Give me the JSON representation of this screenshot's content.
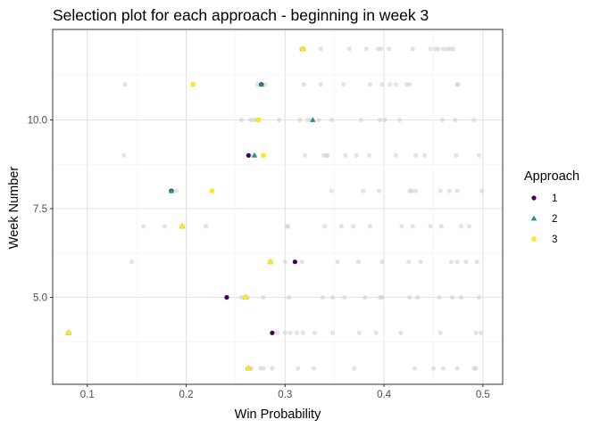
{
  "chart_data": {
    "type": "scatter",
    "title": "Selection plot for each approach - beginning in week 3",
    "xlabel": "Win Probability",
    "ylabel": "Week Number",
    "xlim": [
      0.065,
      0.52
    ],
    "ylim": [
      2.55,
      12.55
    ],
    "x_ticks": [
      0.1,
      0.2,
      0.3,
      0.4,
      0.5
    ],
    "x_tick_labels": [
      "0.1",
      "0.2",
      "0.3",
      "0.4",
      "0.5"
    ],
    "y_ticks": [
      5.0,
      7.5,
      10.0
    ],
    "y_tick_labels": [
      "5.0",
      "7.5",
      "10.0"
    ],
    "grid": true,
    "legend": {
      "title": "Approach",
      "position": "right",
      "entries": [
        {
          "label": "1",
          "color": "#440154",
          "shape": "circle"
        },
        {
          "label": "2",
          "color": "#21908C",
          "shape": "triangle"
        },
        {
          "label": "3",
          "color": "#FDE725",
          "shape": "square"
        }
      ]
    },
    "background_points_color": "#cccccc",
    "background_points": [
      {
        "x": 0.081,
        "y": 4
      },
      {
        "x": 0.287,
        "y": 4
      },
      {
        "x": 0.292,
        "y": 4
      },
      {
        "x": 0.3,
        "y": 4
      },
      {
        "x": 0.305,
        "y": 4
      },
      {
        "x": 0.312,
        "y": 4
      },
      {
        "x": 0.318,
        "y": 4
      },
      {
        "x": 0.33,
        "y": 4
      },
      {
        "x": 0.348,
        "y": 4
      },
      {
        "x": 0.375,
        "y": 4
      },
      {
        "x": 0.392,
        "y": 4
      },
      {
        "x": 0.417,
        "y": 4
      },
      {
        "x": 0.457,
        "y": 4
      },
      {
        "x": 0.493,
        "y": 4
      },
      {
        "x": 0.498,
        "y": 4
      },
      {
        "x": 0.262,
        "y": 3
      },
      {
        "x": 0.266,
        "y": 3
      },
      {
        "x": 0.275,
        "y": 3
      },
      {
        "x": 0.278,
        "y": 3
      },
      {
        "x": 0.287,
        "y": 3
      },
      {
        "x": 0.313,
        "y": 3
      },
      {
        "x": 0.329,
        "y": 3
      },
      {
        "x": 0.37,
        "y": 3
      },
      {
        "x": 0.431,
        "y": 3
      },
      {
        "x": 0.45,
        "y": 3
      },
      {
        "x": 0.46,
        "y": 3
      },
      {
        "x": 0.474,
        "y": 3
      },
      {
        "x": 0.491,
        "y": 3
      },
      {
        "x": 0.493,
        "y": 3
      },
      {
        "x": 0.241,
        "y": 5
      },
      {
        "x": 0.256,
        "y": 5
      },
      {
        "x": 0.262,
        "y": 5
      },
      {
        "x": 0.278,
        "y": 5
      },
      {
        "x": 0.304,
        "y": 5
      },
      {
        "x": 0.338,
        "y": 5
      },
      {
        "x": 0.348,
        "y": 5
      },
      {
        "x": 0.36,
        "y": 5
      },
      {
        "x": 0.381,
        "y": 5
      },
      {
        "x": 0.396,
        "y": 5
      },
      {
        "x": 0.398,
        "y": 5
      },
      {
        "x": 0.426,
        "y": 5
      },
      {
        "x": 0.434,
        "y": 5
      },
      {
        "x": 0.456,
        "y": 5
      },
      {
        "x": 0.469,
        "y": 5
      },
      {
        "x": 0.478,
        "y": 5
      },
      {
        "x": 0.496,
        "y": 5
      },
      {
        "x": 0.145,
        "y": 6
      },
      {
        "x": 0.286,
        "y": 6
      },
      {
        "x": 0.3,
        "y": 6
      },
      {
        "x": 0.31,
        "y": 6
      },
      {
        "x": 0.317,
        "y": 6
      },
      {
        "x": 0.353,
        "y": 6
      },
      {
        "x": 0.374,
        "y": 6
      },
      {
        "x": 0.398,
        "y": 6
      },
      {
        "x": 0.425,
        "y": 6
      },
      {
        "x": 0.437,
        "y": 6
      },
      {
        "x": 0.468,
        "y": 6
      },
      {
        "x": 0.474,
        "y": 6
      },
      {
        "x": 0.483,
        "y": 6
      },
      {
        "x": 0.494,
        "y": 6
      },
      {
        "x": 0.157,
        "y": 7
      },
      {
        "x": 0.178,
        "y": 7
      },
      {
        "x": 0.196,
        "y": 7
      },
      {
        "x": 0.22,
        "y": 7
      },
      {
        "x": 0.302,
        "y": 7
      },
      {
        "x": 0.303,
        "y": 7
      },
      {
        "x": 0.34,
        "y": 7
      },
      {
        "x": 0.357,
        "y": 7
      },
      {
        "x": 0.369,
        "y": 7
      },
      {
        "x": 0.386,
        "y": 7
      },
      {
        "x": 0.418,
        "y": 7
      },
      {
        "x": 0.429,
        "y": 7
      },
      {
        "x": 0.447,
        "y": 7
      },
      {
        "x": 0.458,
        "y": 7
      },
      {
        "x": 0.478,
        "y": 7
      },
      {
        "x": 0.486,
        "y": 7
      },
      {
        "x": 0.185,
        "y": 8
      },
      {
        "x": 0.19,
        "y": 8
      },
      {
        "x": 0.226,
        "y": 8
      },
      {
        "x": 0.347,
        "y": 8
      },
      {
        "x": 0.379,
        "y": 8
      },
      {
        "x": 0.395,
        "y": 8
      },
      {
        "x": 0.426,
        "y": 8
      },
      {
        "x": 0.428,
        "y": 8
      },
      {
        "x": 0.432,
        "y": 8
      },
      {
        "x": 0.457,
        "y": 8
      },
      {
        "x": 0.466,
        "y": 8
      },
      {
        "x": 0.474,
        "y": 8
      },
      {
        "x": 0.499,
        "y": 8
      },
      {
        "x": 0.137,
        "y": 9
      },
      {
        "x": 0.264,
        "y": 9
      },
      {
        "x": 0.269,
        "y": 9
      },
      {
        "x": 0.278,
        "y": 9
      },
      {
        "x": 0.32,
        "y": 9
      },
      {
        "x": 0.339,
        "y": 9
      },
      {
        "x": 0.342,
        "y": 9
      },
      {
        "x": 0.343,
        "y": 9
      },
      {
        "x": 0.361,
        "y": 9
      },
      {
        "x": 0.372,
        "y": 9
      },
      {
        "x": 0.385,
        "y": 9
      },
      {
        "x": 0.412,
        "y": 9
      },
      {
        "x": 0.432,
        "y": 9
      },
      {
        "x": 0.441,
        "y": 9
      },
      {
        "x": 0.473,
        "y": 9
      },
      {
        "x": 0.496,
        "y": 9
      },
      {
        "x": 0.256,
        "y": 10
      },
      {
        "x": 0.265,
        "y": 10
      },
      {
        "x": 0.269,
        "y": 10
      },
      {
        "x": 0.272,
        "y": 10
      },
      {
        "x": 0.294,
        "y": 10
      },
      {
        "x": 0.315,
        "y": 10
      },
      {
        "x": 0.323,
        "y": 10
      },
      {
        "x": 0.327,
        "y": 10
      },
      {
        "x": 0.334,
        "y": 10
      },
      {
        "x": 0.347,
        "y": 10
      },
      {
        "x": 0.377,
        "y": 10
      },
      {
        "x": 0.396,
        "y": 10
      },
      {
        "x": 0.401,
        "y": 10
      },
      {
        "x": 0.416,
        "y": 10
      },
      {
        "x": 0.459,
        "y": 10
      },
      {
        "x": 0.472,
        "y": 10
      },
      {
        "x": 0.491,
        "y": 10
      },
      {
        "x": 0.138,
        "y": 11
      },
      {
        "x": 0.207,
        "y": 11
      },
      {
        "x": 0.272,
        "y": 11
      },
      {
        "x": 0.28,
        "y": 11
      },
      {
        "x": 0.319,
        "y": 11
      },
      {
        "x": 0.336,
        "y": 11
      },
      {
        "x": 0.359,
        "y": 11
      },
      {
        "x": 0.386,
        "y": 11
      },
      {
        "x": 0.398,
        "y": 11
      },
      {
        "x": 0.406,
        "y": 11
      },
      {
        "x": 0.412,
        "y": 11
      },
      {
        "x": 0.423,
        "y": 11
      },
      {
        "x": 0.426,
        "y": 11
      },
      {
        "x": 0.474,
        "y": 11
      },
      {
        "x": 0.475,
        "y": 11
      },
      {
        "x": 0.316,
        "y": 12
      },
      {
        "x": 0.319,
        "y": 12
      },
      {
        "x": 0.336,
        "y": 12
      },
      {
        "x": 0.365,
        "y": 12
      },
      {
        "x": 0.382,
        "y": 12
      },
      {
        "x": 0.394,
        "y": 12
      },
      {
        "x": 0.397,
        "y": 12
      },
      {
        "x": 0.405,
        "y": 12
      },
      {
        "x": 0.429,
        "y": 12
      },
      {
        "x": 0.447,
        "y": 12
      },
      {
        "x": 0.452,
        "y": 12
      },
      {
        "x": 0.455,
        "y": 12
      },
      {
        "x": 0.46,
        "y": 12
      },
      {
        "x": 0.464,
        "y": 12
      },
      {
        "x": 0.467,
        "y": 12
      },
      {
        "x": 0.47,
        "y": 12
      }
    ],
    "series": [
      {
        "name": "1",
        "color": "#440154",
        "shape": "circle",
        "points": [
          {
            "x": 0.263,
            "y": 3
          },
          {
            "x": 0.287,
            "y": 4
          },
          {
            "x": 0.081,
            "y": 4
          },
          {
            "x": 0.241,
            "y": 5
          },
          {
            "x": 0.31,
            "y": 6
          },
          {
            "x": 0.196,
            "y": 7
          },
          {
            "x": 0.185,
            "y": 8
          },
          {
            "x": 0.263,
            "y": 9
          },
          {
            "x": 0.273,
            "y": 10
          },
          {
            "x": 0.276,
            "y": 11
          },
          {
            "x": 0.318,
            "y": 12
          }
        ]
      },
      {
        "name": "2",
        "color": "#21908C",
        "shape": "triangle",
        "points": [
          {
            "x": 0.263,
            "y": 3
          },
          {
            "x": 0.081,
            "y": 4
          },
          {
            "x": 0.26,
            "y": 5
          },
          {
            "x": 0.285,
            "y": 6
          },
          {
            "x": 0.196,
            "y": 7
          },
          {
            "x": 0.185,
            "y": 8
          },
          {
            "x": 0.269,
            "y": 9
          },
          {
            "x": 0.328,
            "y": 10
          },
          {
            "x": 0.276,
            "y": 11
          },
          {
            "x": 0.318,
            "y": 12
          }
        ]
      },
      {
        "name": "3",
        "color": "#FDE725",
        "shape": "square",
        "points": [
          {
            "x": 0.263,
            "y": 3
          },
          {
            "x": 0.081,
            "y": 4
          },
          {
            "x": 0.26,
            "y": 5
          },
          {
            "x": 0.285,
            "y": 6
          },
          {
            "x": 0.196,
            "y": 7
          },
          {
            "x": 0.226,
            "y": 8
          },
          {
            "x": 0.278,
            "y": 9
          },
          {
            "x": 0.273,
            "y": 10
          },
          {
            "x": 0.207,
            "y": 11
          },
          {
            "x": 0.318,
            "y": 12
          }
        ]
      }
    ]
  }
}
